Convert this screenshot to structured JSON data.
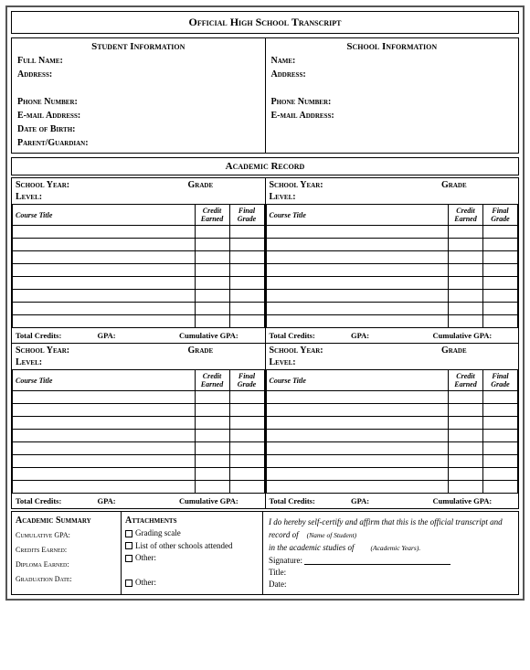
{
  "title": "Official High School Transcript",
  "student_info": {
    "header": "Student Information",
    "full_name": "Full Name:",
    "address": "Address:",
    "phone": "Phone Number:",
    "email": "E-mail Address:",
    "dob": "Date of Birth:",
    "guardian": "Parent/Guardian:"
  },
  "school_info": {
    "header": "School Information",
    "name": "Name:",
    "address": "Address:",
    "phone": "Phone Number:",
    "email": "E-mail Address:"
  },
  "academic_record": "Academic Record",
  "grade_block": {
    "school_year": "School Year:",
    "grade": "Grade",
    "level": "Level:",
    "course_title": "Course Title",
    "credit_earned": "Credit Earned",
    "final_grade": "Final Grade",
    "total_credits": "Total Credits:",
    "gpa": "GPA:",
    "cumulative_gpa": "Cumulative GPA:",
    "rows": 8
  },
  "summary": {
    "title": "Academic Summary",
    "cum_gpa": "Cumulative GPA:",
    "credits": "Credits Earned:",
    "diploma": "Diploma Earned:",
    "grad": "Graduation Date:"
  },
  "attachments": {
    "title": "Attachments",
    "grading": "Grading scale",
    "list_schools": "List of other schools attended",
    "other": "Other:",
    "other2": "Other:"
  },
  "cert": {
    "line1": "I do hereby self-certify and affirm that this is the official transcript and",
    "line2a": "record of",
    "line2b": "(Name of Student)",
    "line3a": "in the academic studies of",
    "line3b": "(Academic Years).",
    "signature": "Signature:",
    "title_lbl": "Title:",
    "date": "Date:"
  }
}
